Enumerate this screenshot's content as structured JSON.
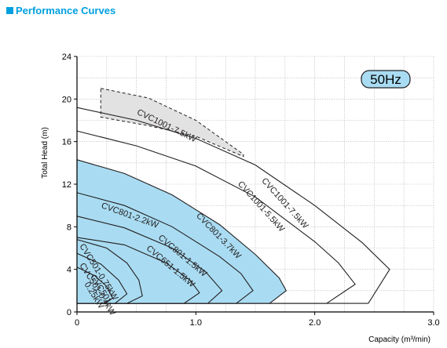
{
  "section_title": "Performance Curves",
  "colors": {
    "accent": "#00a0e0",
    "fill": "#a9dcf2",
    "dashed_fill": "#e2e2e2",
    "line": "#231f20"
  },
  "chart_data": {
    "type": "line",
    "title": "",
    "xlabel": "Capacity (m³/min)",
    "ylabel": "Total Head (m)",
    "xlim": [
      0,
      3.0
    ],
    "ylim": [
      0,
      24
    ],
    "xticks": [
      "0",
      "1.0",
      "2.0",
      "3.0"
    ],
    "yticks": [
      "0",
      "4",
      "8",
      "12",
      "16",
      "20",
      "24"
    ],
    "grid": true,
    "frequency_badge": "50Hz",
    "series": [
      {
        "name": "CVC1001-7.5kW",
        "style": "dashed-shaded",
        "x": [
          0.2,
          0.2,
          1.4,
          1.4
        ],
        "y": [
          21.0,
          18.3,
          14.7,
          14.8
        ],
        "top": [
          [
            0.2,
            21.0
          ],
          [
            0.6,
            20.1
          ],
          [
            1.0,
            18.0
          ],
          [
            1.4,
            14.8
          ]
        ],
        "bottom": [
          [
            0.2,
            18.3
          ],
          [
            0.6,
            17.5
          ],
          [
            1.0,
            16.5
          ],
          [
            1.4,
            14.6
          ]
        ]
      },
      {
        "name": "CVC1001-7.5kW",
        "style": "outline",
        "x": [
          0,
          0.5,
          1.0,
          1.5,
          2.0,
          2.4,
          2.63,
          2.45,
          0.2
        ],
        "y": [
          19.2,
          18.0,
          16.3,
          13.8,
          10.0,
          6.5,
          4.0,
          0.8,
          0.8
        ]
      },
      {
        "name": "CVC1001-5.5kW",
        "style": "outline",
        "x": [
          0,
          0.5,
          1.0,
          1.5,
          2.0,
          2.2,
          2.34,
          2.1,
          0.2
        ],
        "y": [
          17.0,
          15.6,
          13.7,
          10.8,
          6.6,
          4.6,
          2.6,
          0.8,
          0.8
        ]
      },
      {
        "name": "CVC801-3.7kW",
        "style": "shaded",
        "x": [
          0,
          0.4,
          0.8,
          1.2,
          1.5,
          1.7,
          1.76,
          1.62,
          0
        ],
        "y": [
          14.3,
          13.0,
          11.0,
          8.2,
          5.4,
          3.2,
          2.0,
          0.8,
          0.8
        ]
      },
      {
        "name": "CVC801-2.2kW",
        "style": "outline",
        "x": [
          0,
          0.4,
          0.8,
          1.2,
          1.38,
          1.48,
          1.34,
          0
        ],
        "y": [
          11.2,
          10.0,
          8.0,
          5.2,
          3.6,
          2.0,
          0.8,
          0.8
        ]
      },
      {
        "name": "CVC801-1.5kW",
        "style": "outline",
        "x": [
          0,
          0.4,
          0.8,
          1.08,
          1.22,
          1.1,
          0
        ],
        "y": [
          9.0,
          7.9,
          6.0,
          3.8,
          2.0,
          0.8,
          0.8
        ]
      },
      {
        "name": "CVC651-1.5kW",
        "style": "outline",
        "x": [
          0,
          0.4,
          0.75,
          0.95,
          1.03,
          0.9,
          0
        ],
        "y": [
          7.0,
          6.3,
          4.6,
          3.0,
          1.8,
          0.8,
          0.8
        ]
      },
      {
        "name": "CVC501-0.75kW",
        "style": "outline",
        "x": [
          0,
          0.25,
          0.42,
          0.52,
          0.55,
          0.42,
          0
        ],
        "y": [
          6.8,
          6.0,
          4.6,
          3.0,
          1.5,
          0.8,
          0.8
        ]
      },
      {
        "name": "CVC501-0.4kW",
        "style": "outline",
        "x": [
          0,
          0.2,
          0.35,
          0.42,
          0.32,
          0
        ],
        "y": [
          5.5,
          4.5,
          3.0,
          1.7,
          0.8,
          0.8
        ]
      },
      {
        "name": "CVC501-0.25kW",
        "style": "outline",
        "x": [
          0,
          0.15,
          0.25,
          0.3,
          0.22,
          0
        ],
        "y": [
          4.2,
          3.4,
          2.4,
          1.3,
          0.8,
          0.8
        ]
      }
    ],
    "curve_labels": [
      {
        "text": "CVC1001-7.5kW",
        "x": 0.5,
        "y": 18.6,
        "angle": 26
      },
      {
        "text": "CVC1001-7.5kW",
        "x": 1.55,
        "y": 12.3,
        "angle": 48
      },
      {
        "text": "CVC1001-5.5kW",
        "x": 1.35,
        "y": 12.0,
        "angle": 48
      },
      {
        "text": "CVC801-3.7kW",
        "x": 1.0,
        "y": 9.0,
        "angle": 46
      },
      {
        "text": "CVC801-2.2kW",
        "x": 0.2,
        "y": 9.8,
        "angle": 20
      },
      {
        "text": "CVC801-1.5kW",
        "x": 0.68,
        "y": 6.9,
        "angle": 40
      },
      {
        "text": "CVC651-1.5kW",
        "x": 0.58,
        "y": 5.9,
        "angle": 40
      },
      {
        "text": "CVC501-0.75kW",
        "x": 0.02,
        "y": 6.2,
        "angle": 58
      },
      {
        "text": "CVC501-0.4kW",
        "x": 0.02,
        "y": 4.4,
        "angle": 58
      },
      {
        "text": "CVC501-",
        "x": 0.11,
        "y": 3.3,
        "angle": 58
      },
      {
        "text": "0.25kW",
        "x": 0.06,
        "y": 2.6,
        "angle": 58
      }
    ]
  }
}
